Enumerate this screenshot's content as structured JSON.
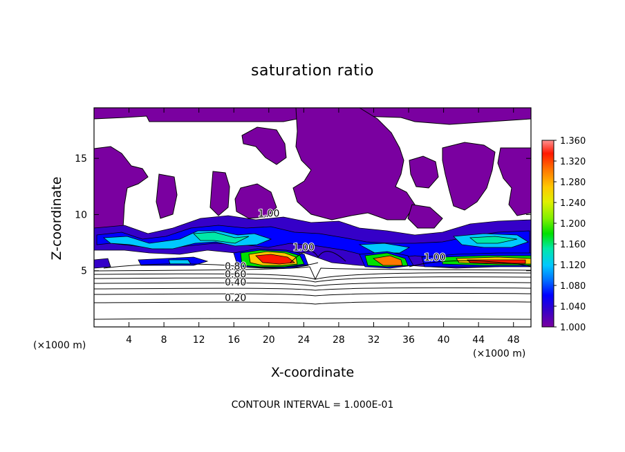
{
  "chart_data": {
    "type": "heatmap",
    "title": "saturation ratio",
    "xlabel": "X-coordinate",
    "ylabel": "Z-coordinate",
    "x_multiplier": "(×1000 m)",
    "z_multiplier": "(×1000 m)",
    "xlim": [
      0,
      50
    ],
    "zlim": [
      0,
      19.5
    ],
    "x_ticks": [
      "4",
      "8",
      "12",
      "16",
      "20",
      "24",
      "28",
      "32",
      "36",
      "40",
      "44",
      "48"
    ],
    "z_ticks": [
      "5",
      "10",
      "15"
    ],
    "colorbar": {
      "min": 1.0,
      "max": 1.36,
      "ticks": [
        "1.360",
        "1.320",
        "1.280",
        "1.240",
        "1.200",
        "1.160",
        "1.120",
        "1.080",
        "1.040",
        "1.000"
      ],
      "colors": [
        "#7a00a0",
        "#3500c8",
        "#0000ff",
        "#0070ff",
        "#00c8ff",
        "#00e8a8",
        "#00e000",
        "#80f000",
        "#e0f000",
        "#ffc800",
        "#ff7800",
        "#ff1800",
        "#ff9090"
      ]
    },
    "contour_labels": [
      {
        "text": "0.20",
        "x": 16.2,
        "z": 2.3
      },
      {
        "text": "0.40",
        "x": 16.2,
        "z": 3.7
      },
      {
        "text": "0.60",
        "x": 16.2,
        "z": 4.4
      },
      {
        "text": "0.80",
        "x": 16.2,
        "z": 5.1
      },
      {
        "text": "1.00",
        "x": 24.0,
        "z": 6.8
      },
      {
        "text": "1.00",
        "x": 39.0,
        "z": 5.9
      },
      {
        "text": "1.00",
        "x": 20.0,
        "z": 9.8
      }
    ],
    "contour_interval_text": "CONTOUR INTERVAL = 1.000E-01"
  }
}
